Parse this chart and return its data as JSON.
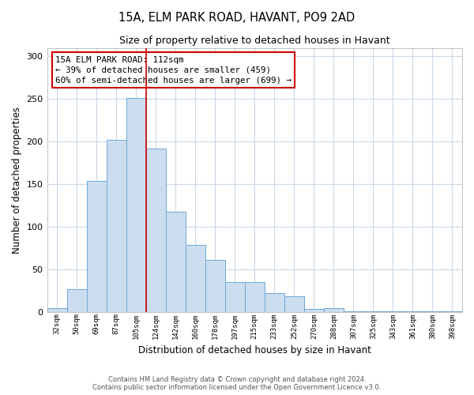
{
  "title": "15A, ELM PARK ROAD, HAVANT, PO9 2AD",
  "subtitle": "Size of property relative to detached houses in Havant",
  "xlabel": "Distribution of detached houses by size in Havant",
  "ylabel": "Number of detached properties",
  "bar_labels": [
    "32sqm",
    "50sqm",
    "69sqm",
    "87sqm",
    "105sqm",
    "124sqm",
    "142sqm",
    "160sqm",
    "178sqm",
    "197sqm",
    "215sqm",
    "233sqm",
    "252sqm",
    "270sqm",
    "288sqm",
    "307sqm",
    "325sqm",
    "343sqm",
    "361sqm",
    "380sqm",
    "398sqm"
  ],
  "bar_values": [
    5,
    27,
    154,
    202,
    251,
    192,
    118,
    79,
    61,
    35,
    35,
    22,
    19,
    4,
    5,
    1,
    1,
    1,
    1,
    1,
    1
  ],
  "bar_color": "#ccddf0",
  "bar_edge_color": "#6ea8d8",
  "vline_x": 4.5,
  "vline_color": "#cc0000",
  "ylim": [
    0,
    310
  ],
  "yticks": [
    0,
    50,
    100,
    150,
    200,
    250,
    300
  ],
  "annotation_title": "15A ELM PARK ROAD: 112sqm",
  "annotation_line1": "← 39% of detached houses are smaller (459)",
  "annotation_line2": "60% of semi-detached houses are larger (699) →",
  "footer_line1": "Contains HM Land Registry data © Crown copyright and database right 2024.",
  "footer_line2": "Contains public sector information licensed under the Open Government Licence v3.0.",
  "background_color": "#ffffff",
  "grid_color": "#c8d8e8"
}
